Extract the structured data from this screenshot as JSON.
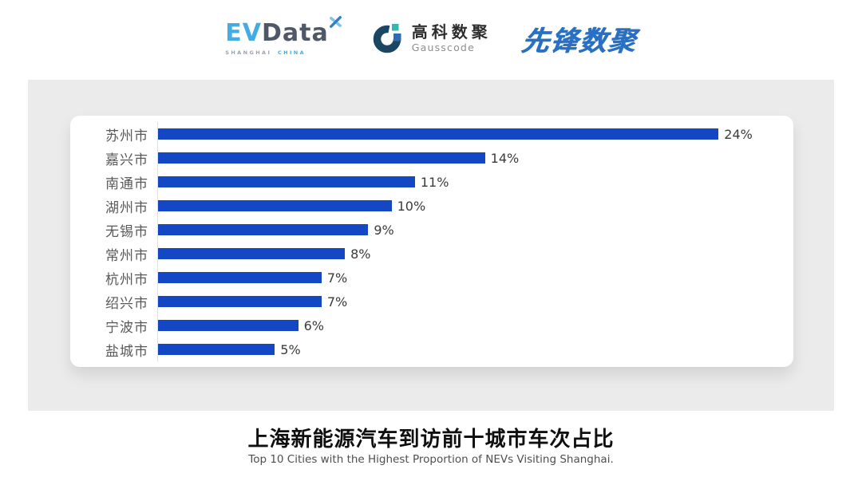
{
  "header": {
    "evdata": {
      "text_ev": "EV",
      "text_data": "Data",
      "sub_left": "SHANGHAI",
      "sub_right": "CHINA",
      "color_light_blue": "#41ade4",
      "color_dark": "#4e5866"
    },
    "gausscode": {
      "cn_name": "高科数聚",
      "en_name": "Gausscode",
      "mark_dark": "#1b4663",
      "mark_teal": "#35b7ae",
      "mark_blue": "#2d6cb5"
    },
    "xianfeng": {
      "cn_name": "先锋数聚",
      "color": "#2a70c2"
    }
  },
  "chart_data": {
    "type": "bar",
    "orientation": "horizontal",
    "title": "上海新能源汽车到访前十城市车次占比",
    "subtitle": "Top 10 Cities with the Highest Proportion of  NEVs Visiting Shanghai.",
    "categories": [
      "苏州市",
      "嘉兴市",
      "南通市",
      "湖州市",
      "无锡市",
      "常州市",
      "杭州市",
      "绍兴市",
      "宁波市",
      "盐城市"
    ],
    "values": [
      24,
      14,
      11,
      10,
      9,
      8,
      7,
      7,
      6,
      5
    ],
    "value_labels": [
      "24%",
      "14%",
      "11%",
      "10%",
      "9%",
      "8%",
      "7%",
      "7%",
      "6%",
      "5%"
    ],
    "unit": "%",
    "x_max": 24,
    "bar_color": "#1347c4",
    "axis_line_color": "#e0e0e0",
    "grid": false,
    "legend": false
  }
}
